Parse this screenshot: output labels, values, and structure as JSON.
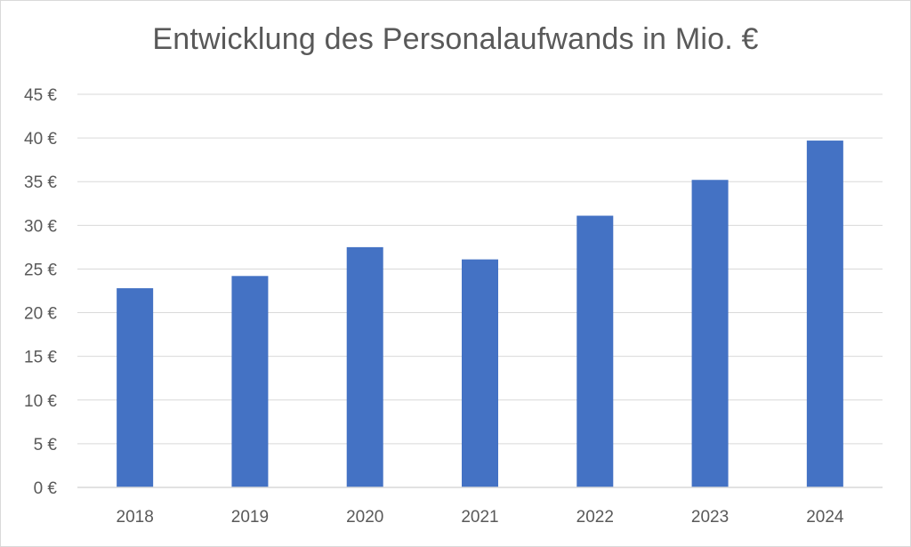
{
  "chart_data": {
    "type": "bar",
    "title": "Entwicklung des Personalaufwands in Mio. €",
    "xlabel": "",
    "ylabel": "",
    "categories": [
      "2018",
      "2019",
      "2020",
      "2021",
      "2022",
      "2023",
      "2024"
    ],
    "values": [
      22.8,
      24.2,
      27.5,
      26.1,
      31.1,
      35.2,
      39.7
    ],
    "ylim": [
      0,
      45
    ],
    "y_ticks": [
      "0 €",
      "5 €",
      "10 €",
      "15 €",
      "20 €",
      "25 €",
      "30 €",
      "35 €",
      "40 €",
      "45 €"
    ],
    "grid": true,
    "legend": "none",
    "bar_color": "#4472c4"
  }
}
